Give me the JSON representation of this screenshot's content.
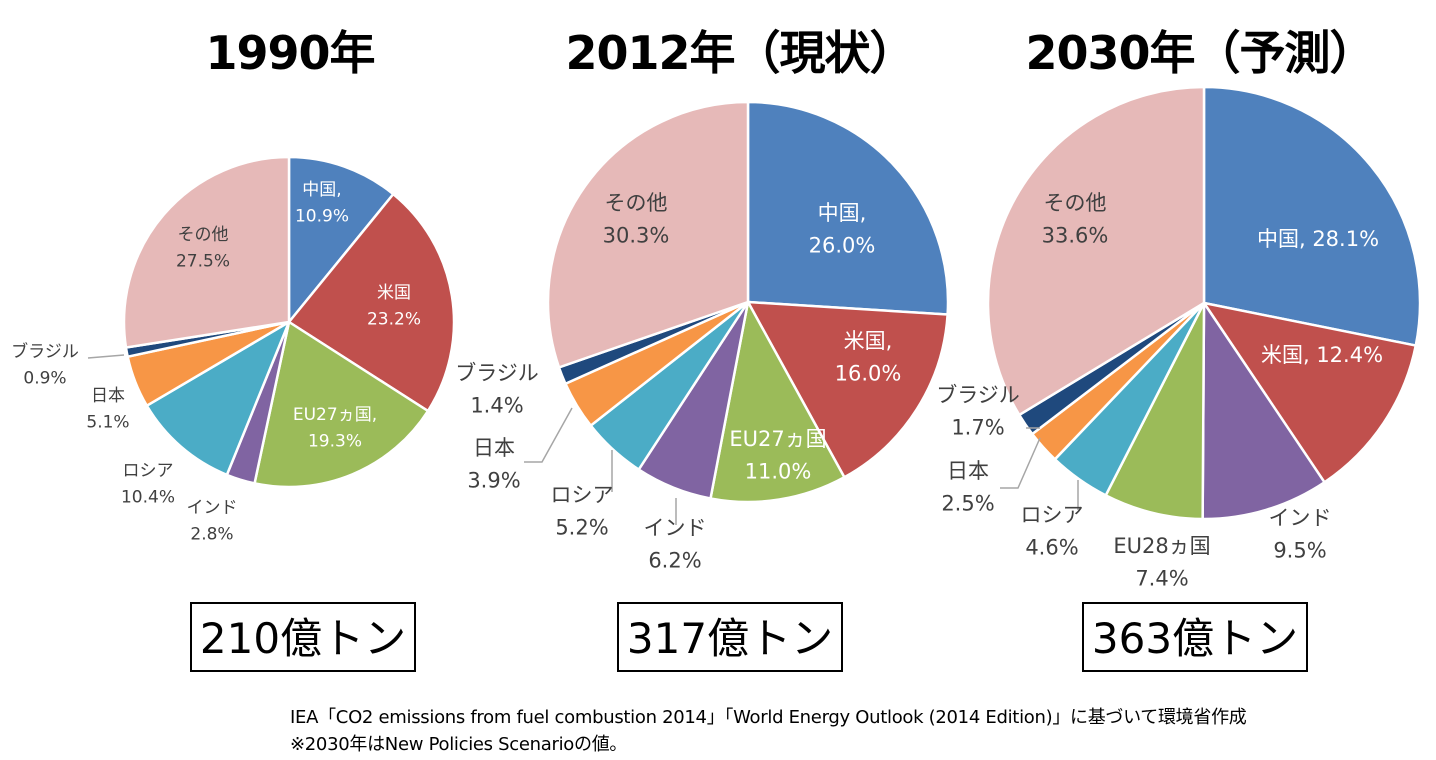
{
  "chart_data": [
    {
      "type": "pie",
      "title": "1990年",
      "total": "210億トン",
      "series": [
        {
          "name": "中国",
          "value": 10.9,
          "pct": "10.9%",
          "color": "#4f81bd"
        },
        {
          "name": "米国",
          "value": 23.2,
          "pct": "23.2%",
          "color": "#c0504d"
        },
        {
          "name": "EU27ヵ国",
          "value": 19.3,
          "pct": "19.3%",
          "color": "#9bbb59"
        },
        {
          "name": "インド",
          "value": 2.8,
          "pct": "2.8%",
          "color": "#8064a2"
        },
        {
          "name": "ロシア",
          "value": 10.4,
          "pct": "10.4%",
          "color": "#4bacc6"
        },
        {
          "name": "日本",
          "value": 5.1,
          "pct": "5.1%",
          "color": "#f79646"
        },
        {
          "name": "ブラジル",
          "value": 0.9,
          "pct": "0.9%",
          "color": "#1f497d"
        },
        {
          "name": "その他",
          "value": 27.5,
          "pct": "27.5%",
          "color": "#e6b9b8"
        }
      ]
    },
    {
      "type": "pie",
      "title": "2012年（現状）",
      "total": "317億トン",
      "series": [
        {
          "name": "中国",
          "value": 26.0,
          "pct": "26.0%",
          "color": "#4f81bd"
        },
        {
          "name": "米国",
          "value": 16.0,
          "pct": "16.0%",
          "color": "#c0504d"
        },
        {
          "name": "EU27ヵ国",
          "value": 11.0,
          "pct": "11.0%",
          "color": "#9bbb59"
        },
        {
          "name": "インド",
          "value": 6.2,
          "pct": "6.2%",
          "color": "#8064a2"
        },
        {
          "name": "ロシア",
          "value": 5.2,
          "pct": "5.2%",
          "color": "#4bacc6"
        },
        {
          "name": "日本",
          "value": 3.9,
          "pct": "3.9%",
          "color": "#f79646"
        },
        {
          "name": "ブラジル",
          "value": 1.4,
          "pct": "1.4%",
          "color": "#1f497d"
        },
        {
          "name": "その他",
          "value": 30.3,
          "pct": "30.3%",
          "color": "#e6b9b8"
        }
      ]
    },
    {
      "type": "pie",
      "title": "2030年（予測）",
      "total": "363億トン",
      "series": [
        {
          "name": "中国",
          "value": 28.1,
          "pct": "28.1%",
          "color": "#4f81bd"
        },
        {
          "name": "米国",
          "value": 12.4,
          "pct": "12.4%",
          "color": "#c0504d"
        },
        {
          "name": "インド",
          "value": 9.5,
          "pct": "9.5%",
          "color": "#8064a2"
        },
        {
          "name": "EU28ヵ国",
          "value": 7.4,
          "pct": "7.4%",
          "color": "#9bbb59"
        },
        {
          "name": "ロシア",
          "value": 4.6,
          "pct": "4.6%",
          "color": "#4bacc6"
        },
        {
          "name": "日本",
          "value": 2.5,
          "pct": "2.5%",
          "color": "#f79646"
        },
        {
          "name": "ブラジル",
          "value": 1.7,
          "pct": "1.7%",
          "color": "#1f497d"
        },
        {
          "name": "その他",
          "value": 33.6,
          "pct": "33.6%",
          "color": "#e6b9b8"
        }
      ]
    }
  ],
  "source": {
    "line1": "IEA「CO2 emissions from fuel combustion 2014」「World Energy Outlook (2014 Edition)」に基づいて環境省作成",
    "line2": "※2030年はNew Policies Scenarioの値。"
  }
}
